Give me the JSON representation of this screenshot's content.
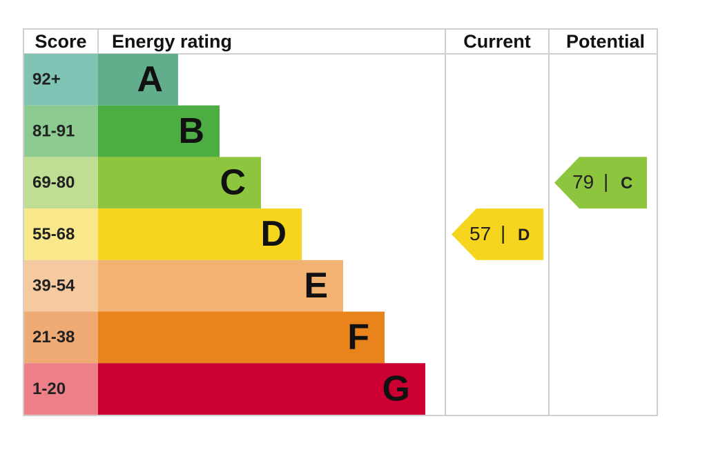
{
  "header": {
    "score": "Score",
    "rating": "Energy rating",
    "current": "Current",
    "potential": "Potential"
  },
  "bands": [
    {
      "score": "92+",
      "letter": "A"
    },
    {
      "score": "81-91",
      "letter": "B"
    },
    {
      "score": "69-80",
      "letter": "C"
    },
    {
      "score": "55-68",
      "letter": "D"
    },
    {
      "score": "39-54",
      "letter": "E"
    },
    {
      "score": "21-38",
      "letter": "F"
    },
    {
      "score": "1-20",
      "letter": "G"
    }
  ],
  "current": {
    "value": 57,
    "separator": "|",
    "letter": "D"
  },
  "potential": {
    "value": 79,
    "separator": "|",
    "letter": "C"
  }
}
